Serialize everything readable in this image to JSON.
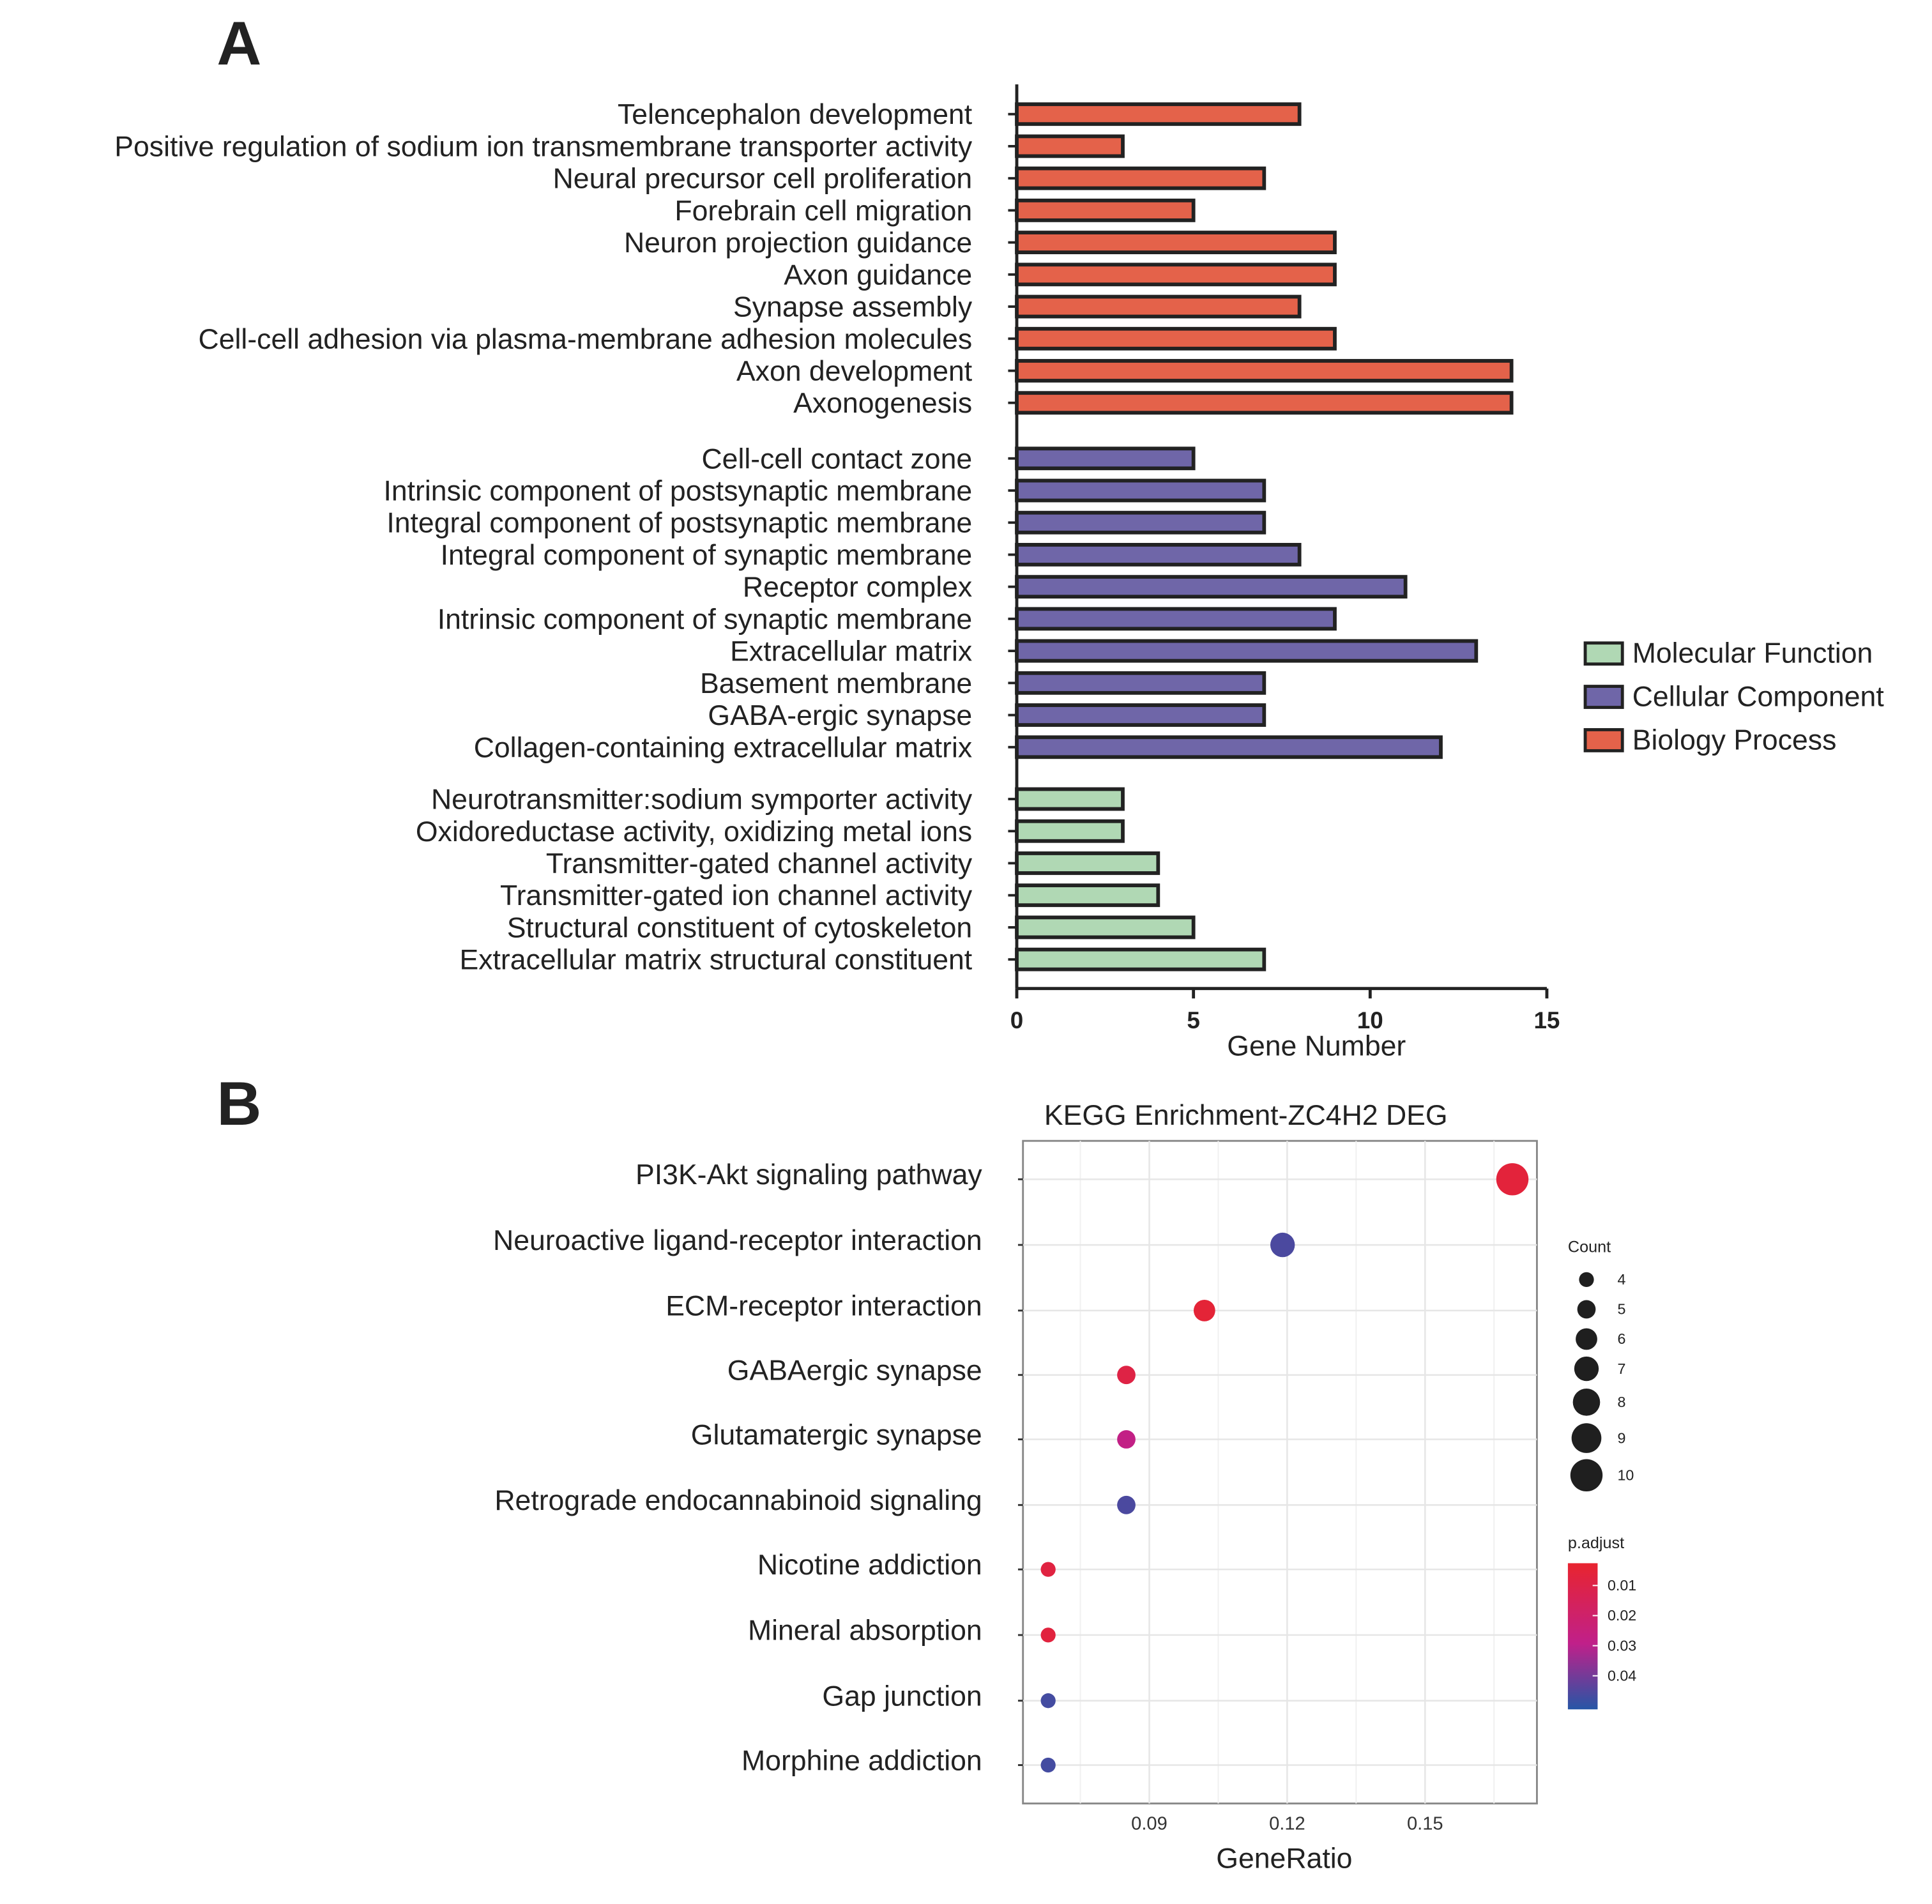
{
  "chart_data": [
    {
      "type": "bar",
      "panel_label": "A",
      "orientation": "horizontal",
      "xlabel": "Gene Number",
      "xlim": [
        0,
        15
      ],
      "xticks": [
        "0",
        "5",
        "10",
        "15"
      ],
      "legend": {
        "position": "right",
        "entries": [
          {
            "name": "Molecular Function",
            "color": "#b0d8b4"
          },
          {
            "name": "Cellular Component",
            "color": "#6f66a8"
          },
          {
            "name": "Biology Process",
            "color": "#e4624a"
          }
        ]
      },
      "series": [
        {
          "name": "Biology Process",
          "color": "#e4624a",
          "categories": [
            "Telencephalon development",
            "Positive regulation of sodium ion transmembrane transporter activity",
            "Neural precursor cell proliferation",
            "Forebrain cell migration",
            "Neuron projection guidance",
            "Axon guidance",
            "Synapse assembly",
            "Cell-cell adhesion via plasma-membrane adhesion molecules",
            "Axon development",
            "Axonogenesis"
          ],
          "values": [
            8,
            3,
            7,
            5,
            9,
            9,
            8,
            9,
            14,
            14
          ]
        },
        {
          "name": "Cellular Component",
          "color": "#6f66a8",
          "categories": [
            "Cell-cell contact zone",
            "Intrinsic component of postsynaptic membrane",
            "Integral component of postsynaptic membrane",
            "Integral component of synaptic membrane",
            "Receptor complex",
            "Intrinsic component of synaptic membrane",
            "Extracellular matrix",
            "Basement membrane",
            "GABA-ergic synapse",
            "Collagen-containing extracellular matrix"
          ],
          "values": [
            5,
            7,
            7,
            8,
            11,
            9,
            13,
            7,
            7,
            12
          ]
        },
        {
          "name": "Molecular Function",
          "color": "#b0d8b4",
          "categories": [
            "Neurotransmitter:sodium symporter activity",
            "Oxidoreductase activity, oxidizing metal ions",
            "Transmitter-gated channel activity",
            "Transmitter-gated ion channel activity",
            "Structural constituent of cytoskeleton",
            "Extracellular matrix structural constituent"
          ],
          "values": [
            3,
            3,
            4,
            4,
            5,
            7
          ]
        }
      ]
    },
    {
      "type": "scatter",
      "panel_label": "B",
      "title": "KEGG Enrichment-ZC4H2 DEG",
      "xlabel": "GeneRatio",
      "xticks": [
        "0.09",
        "0.12",
        "0.15"
      ],
      "xlim": [
        0.062,
        0.174
      ],
      "grid": true,
      "categories": [
        "PI3K-Akt signaling pathway",
        "Neuroactive ligand-receptor interaction",
        "ECM-receptor interaction",
        "GABAergic synapse",
        "Glutamatergic synapse",
        "Retrograde endocannabinoid signaling",
        "Nicotine addiction",
        "Mineral absorption",
        "Gap junction",
        "Morphine addiction"
      ],
      "gene_ratio": [
        0.169,
        0.119,
        0.102,
        0.085,
        0.085,
        0.085,
        0.068,
        0.068,
        0.068,
        0.068
      ],
      "count": [
        10,
        7,
        6,
        5,
        5,
        5,
        4,
        4,
        4,
        4
      ],
      "p_adjust": [
        0.006,
        0.046,
        0.005,
        0.009,
        0.028,
        0.046,
        0.008,
        0.007,
        0.047,
        0.047
      ],
      "size_legend": {
        "title": "Count",
        "values": [
          "4",
          "5",
          "6",
          "7",
          "8",
          "9",
          "10"
        ]
      },
      "color_legend": {
        "title": "p.adjust",
        "ticks": [
          "0.01",
          "0.02",
          "0.03",
          "0.04"
        ],
        "low_color": "#e8242f",
        "mid_color": "#c0208a",
        "high_color": "#2656a6"
      }
    }
  ]
}
